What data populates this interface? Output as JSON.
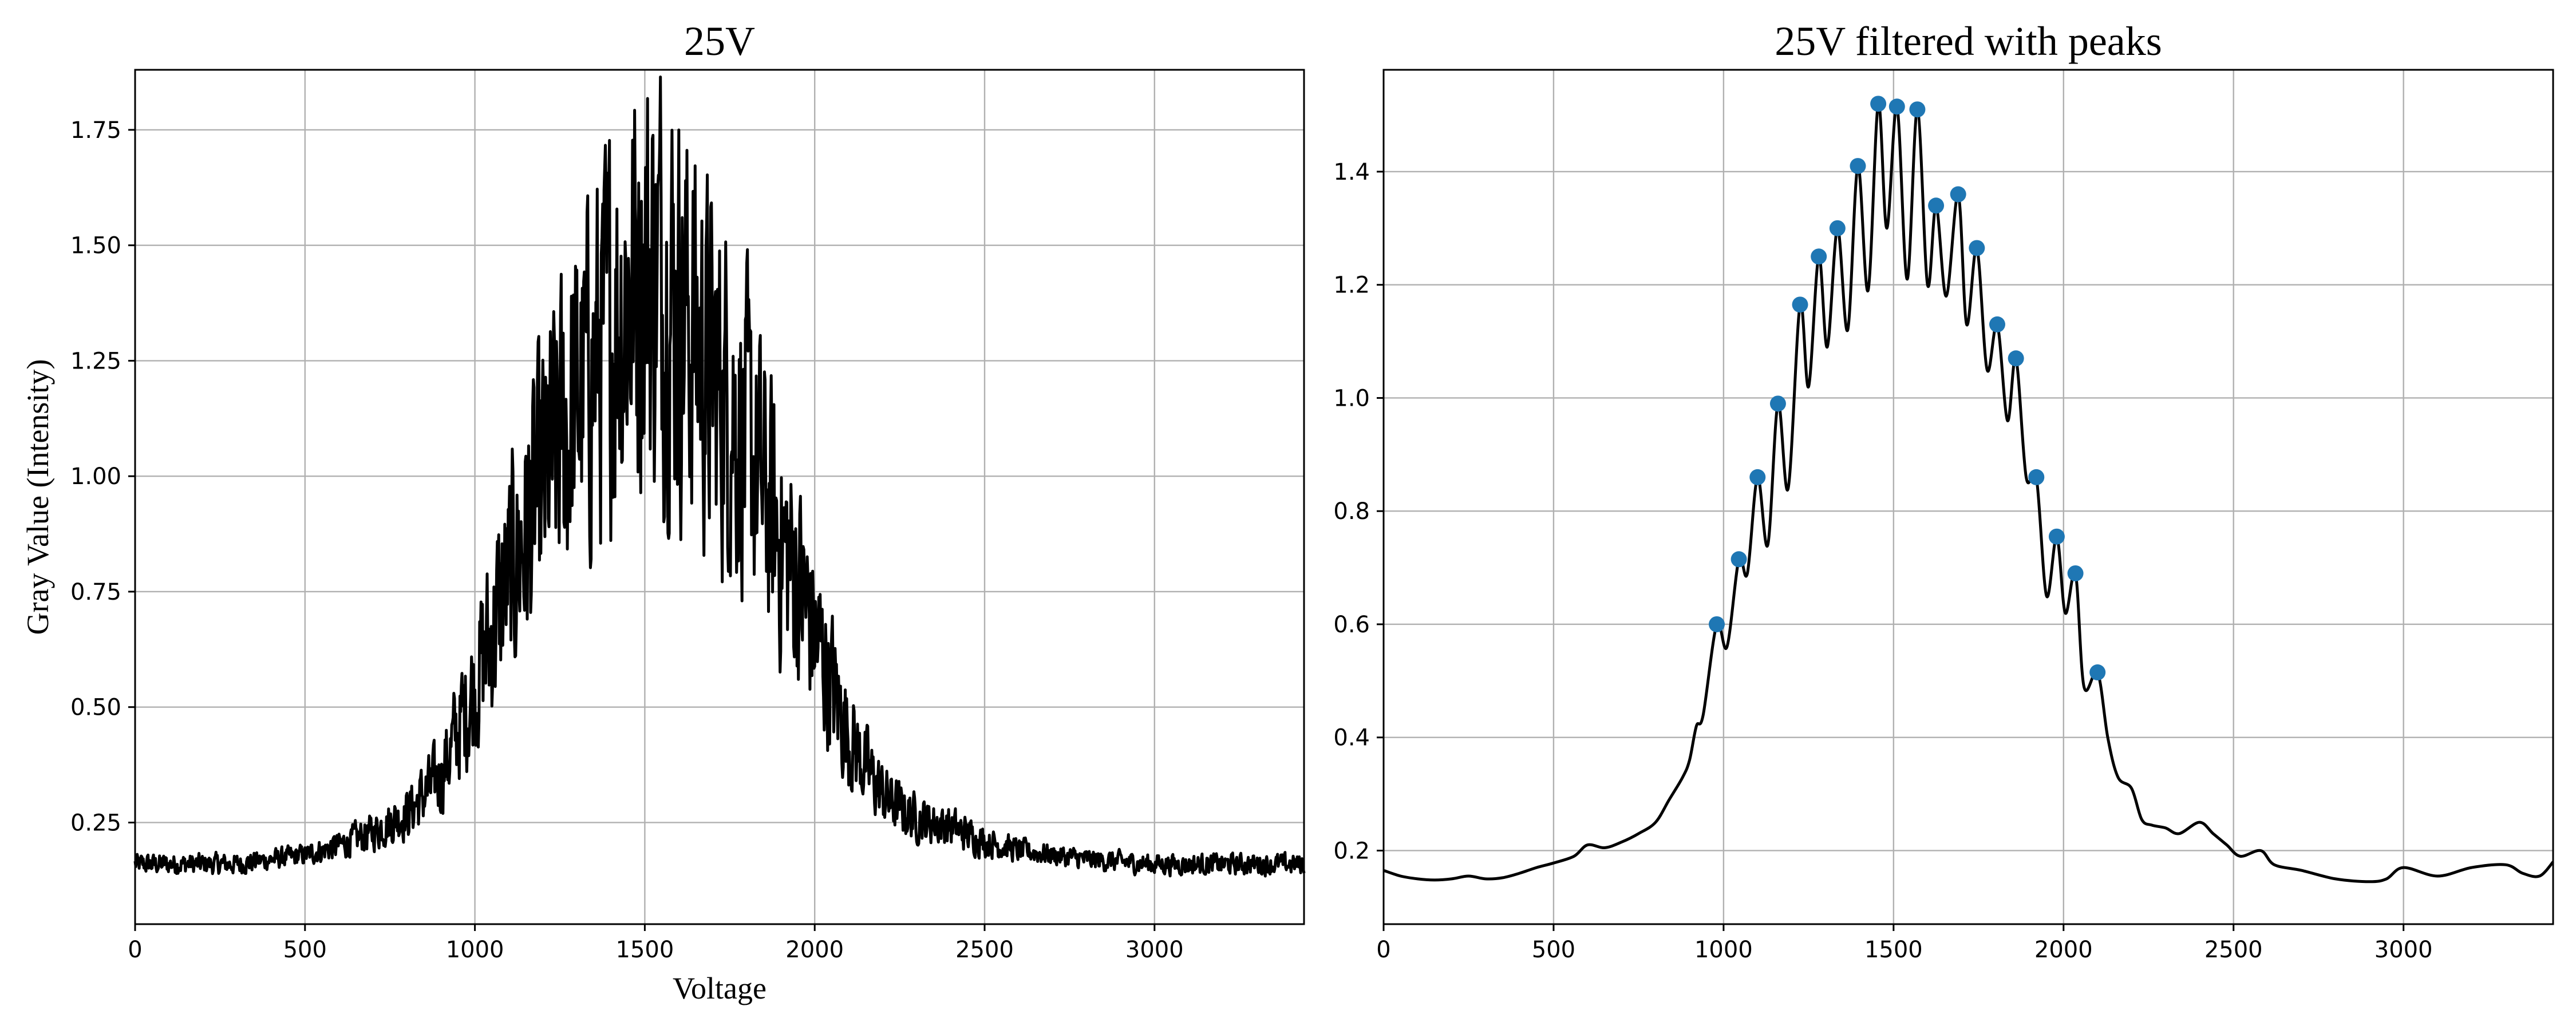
{
  "chart_data": [
    {
      "type": "line",
      "title": "25V",
      "xlabel": "Voltage",
      "ylabel": "Gray Value (Intensity)",
      "xlim": [
        0,
        3440
      ],
      "ylim": [
        0.03,
        1.88
      ],
      "xticks": [
        0,
        500,
        1000,
        1500,
        2000,
        2500,
        3000
      ],
      "yticks": [
        0.25,
        0.5,
        0.75,
        1.0,
        1.25,
        1.5,
        1.75
      ],
      "xtick_labels": [
        "0",
        "500",
        "1000",
        "1500",
        "2000",
        "2500",
        "3000"
      ],
      "ytick_labels": [
        "0.25",
        "0.50",
        "0.75",
        "1.00",
        "1.25",
        "1.50",
        "1.75"
      ],
      "grid": true,
      "line_color": "#000000",
      "noisy": true,
      "envelope": {
        "x": [
          0,
          300,
          500,
          600,
          700,
          800,
          900,
          950,
          1000,
          1050,
          1100,
          1150,
          1200,
          1250,
          1300,
          1350,
          1400,
          1450,
          1500,
          1550,
          1600,
          1650,
          1700,
          1750,
          1800,
          1850,
          1900,
          1950,
          2000,
          2050,
          2100,
          2150,
          2200,
          2250,
          2300,
          2400,
          2500,
          2600,
          2800,
          3000,
          3200,
          3440
        ],
        "y": [
          0.16,
          0.16,
          0.18,
          0.2,
          0.23,
          0.27,
          0.35,
          0.45,
          0.55,
          0.66,
          0.78,
          0.88,
          0.98,
          1.08,
          1.16,
          1.24,
          1.33,
          1.4,
          1.45,
          1.44,
          1.38,
          1.3,
          1.22,
          1.16,
          1.08,
          0.96,
          0.86,
          0.78,
          0.66,
          0.55,
          0.44,
          0.37,
          0.31,
          0.28,
          0.26,
          0.24,
          0.21,
          0.19,
          0.17,
          0.16,
          0.16,
          0.16
        ]
      }
    },
    {
      "type": "line",
      "title": "25V filtered with peaks",
      "xlabel": "",
      "ylabel": "",
      "xlim": [
        0,
        3440
      ],
      "ylim": [
        0.07,
        1.58
      ],
      "xticks": [
        0,
        500,
        1000,
        1500,
        2000,
        2500,
        3000
      ],
      "yticks": [
        0.2,
        0.4,
        0.6,
        0.8,
        1.0,
        1.2,
        1.4
      ],
      "xtick_labels": [
        "0",
        "500",
        "1000",
        "1500",
        "2000",
        "2500",
        "3000"
      ],
      "ytick_labels": [
        "0.2",
        "0.4",
        "0.6",
        "0.8",
        "1.0",
        "1.2",
        "1.4"
      ],
      "grid": true,
      "line_color": "#000000",
      "peak_color": "#1f77b4",
      "line": {
        "x": [
          0,
          50,
          100,
          150,
          200,
          250,
          300,
          350,
          400,
          450,
          500,
          560,
          600,
          650,
          700,
          750,
          800,
          840,
          880,
          900,
          920,
          940,
          980,
          1010,
          1045,
          1070,
          1100,
          1130,
          1160,
          1190,
          1225,
          1250,
          1280,
          1305,
          1335,
          1365,
          1395,
          1425,
          1455,
          1480,
          1510,
          1540,
          1570,
          1600,
          1625,
          1655,
          1690,
          1715,
          1745,
          1775,
          1805,
          1835,
          1860,
          1890,
          1920,
          1950,
          1980,
          2005,
          2035,
          2060,
          2100,
          2130,
          2160,
          2200,
          2230,
          2260,
          2300,
          2340,
          2400,
          2440,
          2480,
          2520,
          2580,
          2620,
          2700,
          2800,
          2900,
          2950,
          3000,
          3100,
          3200,
          3300,
          3350,
          3400,
          3440
        ],
        "y": [
          0.165,
          0.155,
          0.15,
          0.148,
          0.15,
          0.155,
          0.15,
          0.152,
          0.16,
          0.17,
          0.178,
          0.19,
          0.21,
          0.205,
          0.215,
          0.23,
          0.25,
          0.29,
          0.33,
          0.36,
          0.42,
          0.44,
          0.6,
          0.56,
          0.715,
          0.69,
          0.86,
          0.74,
          0.99,
          0.84,
          1.165,
          1.02,
          1.25,
          1.09,
          1.3,
          1.12,
          1.41,
          1.19,
          1.52,
          1.3,
          1.515,
          1.21,
          1.51,
          1.2,
          1.34,
          1.18,
          1.36,
          1.13,
          1.265,
          1.05,
          1.13,
          0.96,
          1.07,
          0.86,
          0.86,
          0.65,
          0.755,
          0.62,
          0.69,
          0.49,
          0.515,
          0.4,
          0.33,
          0.31,
          0.255,
          0.245,
          0.24,
          0.23,
          0.25,
          0.23,
          0.21,
          0.19,
          0.2,
          0.175,
          0.165,
          0.15,
          0.145,
          0.15,
          0.17,
          0.155,
          0.17,
          0.175,
          0.16,
          0.155,
          0.18
        ]
      },
      "peaks": {
        "x": [
          980,
          1045,
          1100,
          1160,
          1225,
          1280,
          1335,
          1395,
          1455,
          1510,
          1570,
          1625,
          1690,
          1745,
          1805,
          1860,
          1920,
          1980,
          2035,
          2100
        ],
        "y": [
          0.6,
          0.715,
          0.86,
          0.99,
          1.165,
          1.25,
          1.3,
          1.41,
          1.52,
          1.515,
          1.51,
          1.34,
          1.36,
          1.265,
          1.13,
          1.07,
          0.86,
          0.755,
          0.69,
          0.515
        ]
      }
    }
  ]
}
